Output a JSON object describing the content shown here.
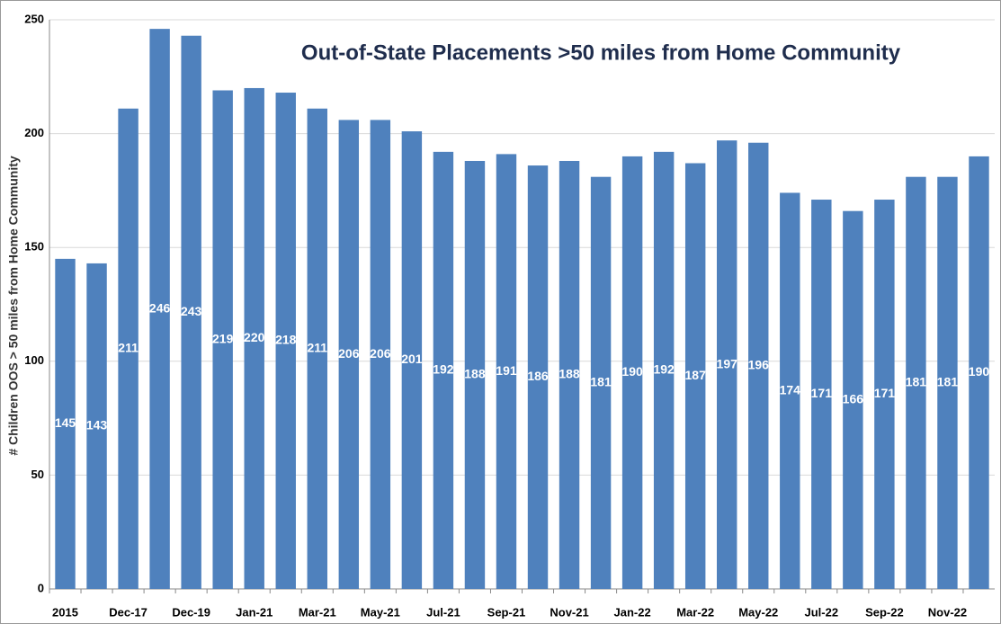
{
  "chart_data": {
    "type": "bar",
    "title": "Out-of-State Placements >50 miles from Home Community",
    "y_label": "# Children OOS > 50 miles from Home Community",
    "categories": [
      "2015",
      null,
      "Dec-17",
      null,
      "Dec-19",
      null,
      "Jan-21",
      null,
      "Mar-21",
      null,
      "May-21",
      null,
      "Jul-21",
      null,
      "Sep-21",
      null,
      "Nov-21",
      null,
      "Jan-22",
      null,
      "Mar-22",
      null,
      "May-22",
      null,
      "Jul-22",
      null,
      "Sep-22",
      null,
      "Nov-22",
      null
    ],
    "values": [
      145,
      143,
      211,
      246,
      243,
      219,
      220,
      218,
      211,
      206,
      206,
      201,
      192,
      188,
      191,
      186,
      188,
      181,
      190,
      192,
      187,
      197,
      196,
      174,
      171,
      166,
      171,
      181,
      181,
      190
    ],
    "color": "#4f81bd",
    "ylim": [
      0,
      250
    ],
    "yticks": [
      0,
      50,
      100,
      150,
      200,
      250
    ],
    "grid": true
  }
}
